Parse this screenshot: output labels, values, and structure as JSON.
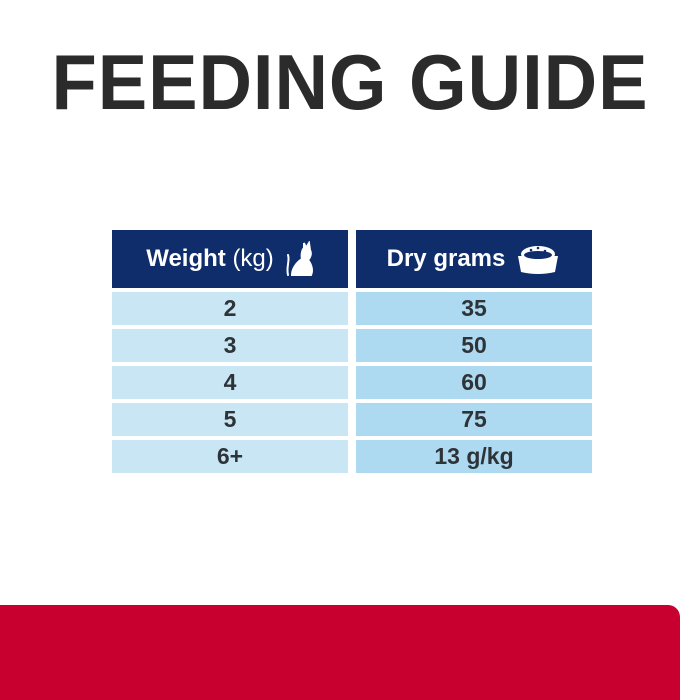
{
  "title": "FEEDING GUIDE",
  "table": {
    "headers": {
      "weight": {
        "label": "Weight",
        "unit": "(kg)",
        "icon": "cat-icon"
      },
      "dry": {
        "label": "Dry grams",
        "icon": "food-bowl-icon"
      }
    },
    "rows": [
      {
        "weight": "2",
        "dry": "35"
      },
      {
        "weight": "3",
        "dry": "50"
      },
      {
        "weight": "4",
        "dry": "60"
      },
      {
        "weight": "5",
        "dry": "75"
      },
      {
        "weight": "6+",
        "dry": "13 g/kg"
      }
    ]
  },
  "colors": {
    "header": "#0f2d6b",
    "band": "#c8002f",
    "title": "#2b2b2b"
  }
}
